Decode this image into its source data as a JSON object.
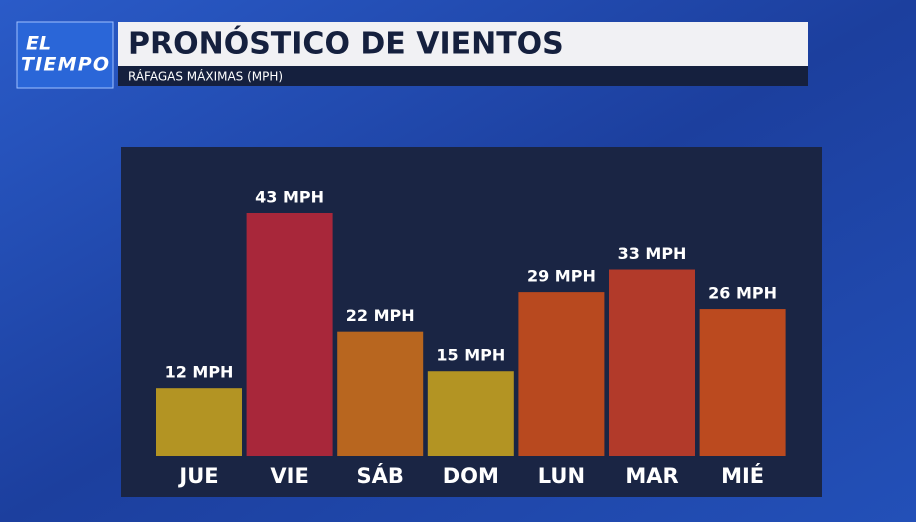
{
  "logo": {
    "lines": [
      "EL",
      "TIEMPO"
    ]
  },
  "chart_data": {
    "type": "bar",
    "title": "PRONÓSTICO DE VIENTOS",
    "subtitle": "RÁFAGAS MÁXIMAS (MPH)",
    "categories": [
      "JUE",
      "VIE",
      "SÁB",
      "DOM",
      "LUN",
      "MAR",
      "MIÉ"
    ],
    "values": [
      12,
      43,
      22,
      15,
      29,
      33,
      26
    ],
    "value_labels": [
      "12 MPH",
      "43 MPH",
      "22 MPH",
      "15 MPH",
      "29 MPH",
      "33 MPH",
      "26 MPH"
    ],
    "colors": [
      "#b39423",
      "#a8273a",
      "#b8661f",
      "#b39423",
      "#b8491f",
      "#b23a2a",
      "#bb4a1f"
    ]
  }
}
